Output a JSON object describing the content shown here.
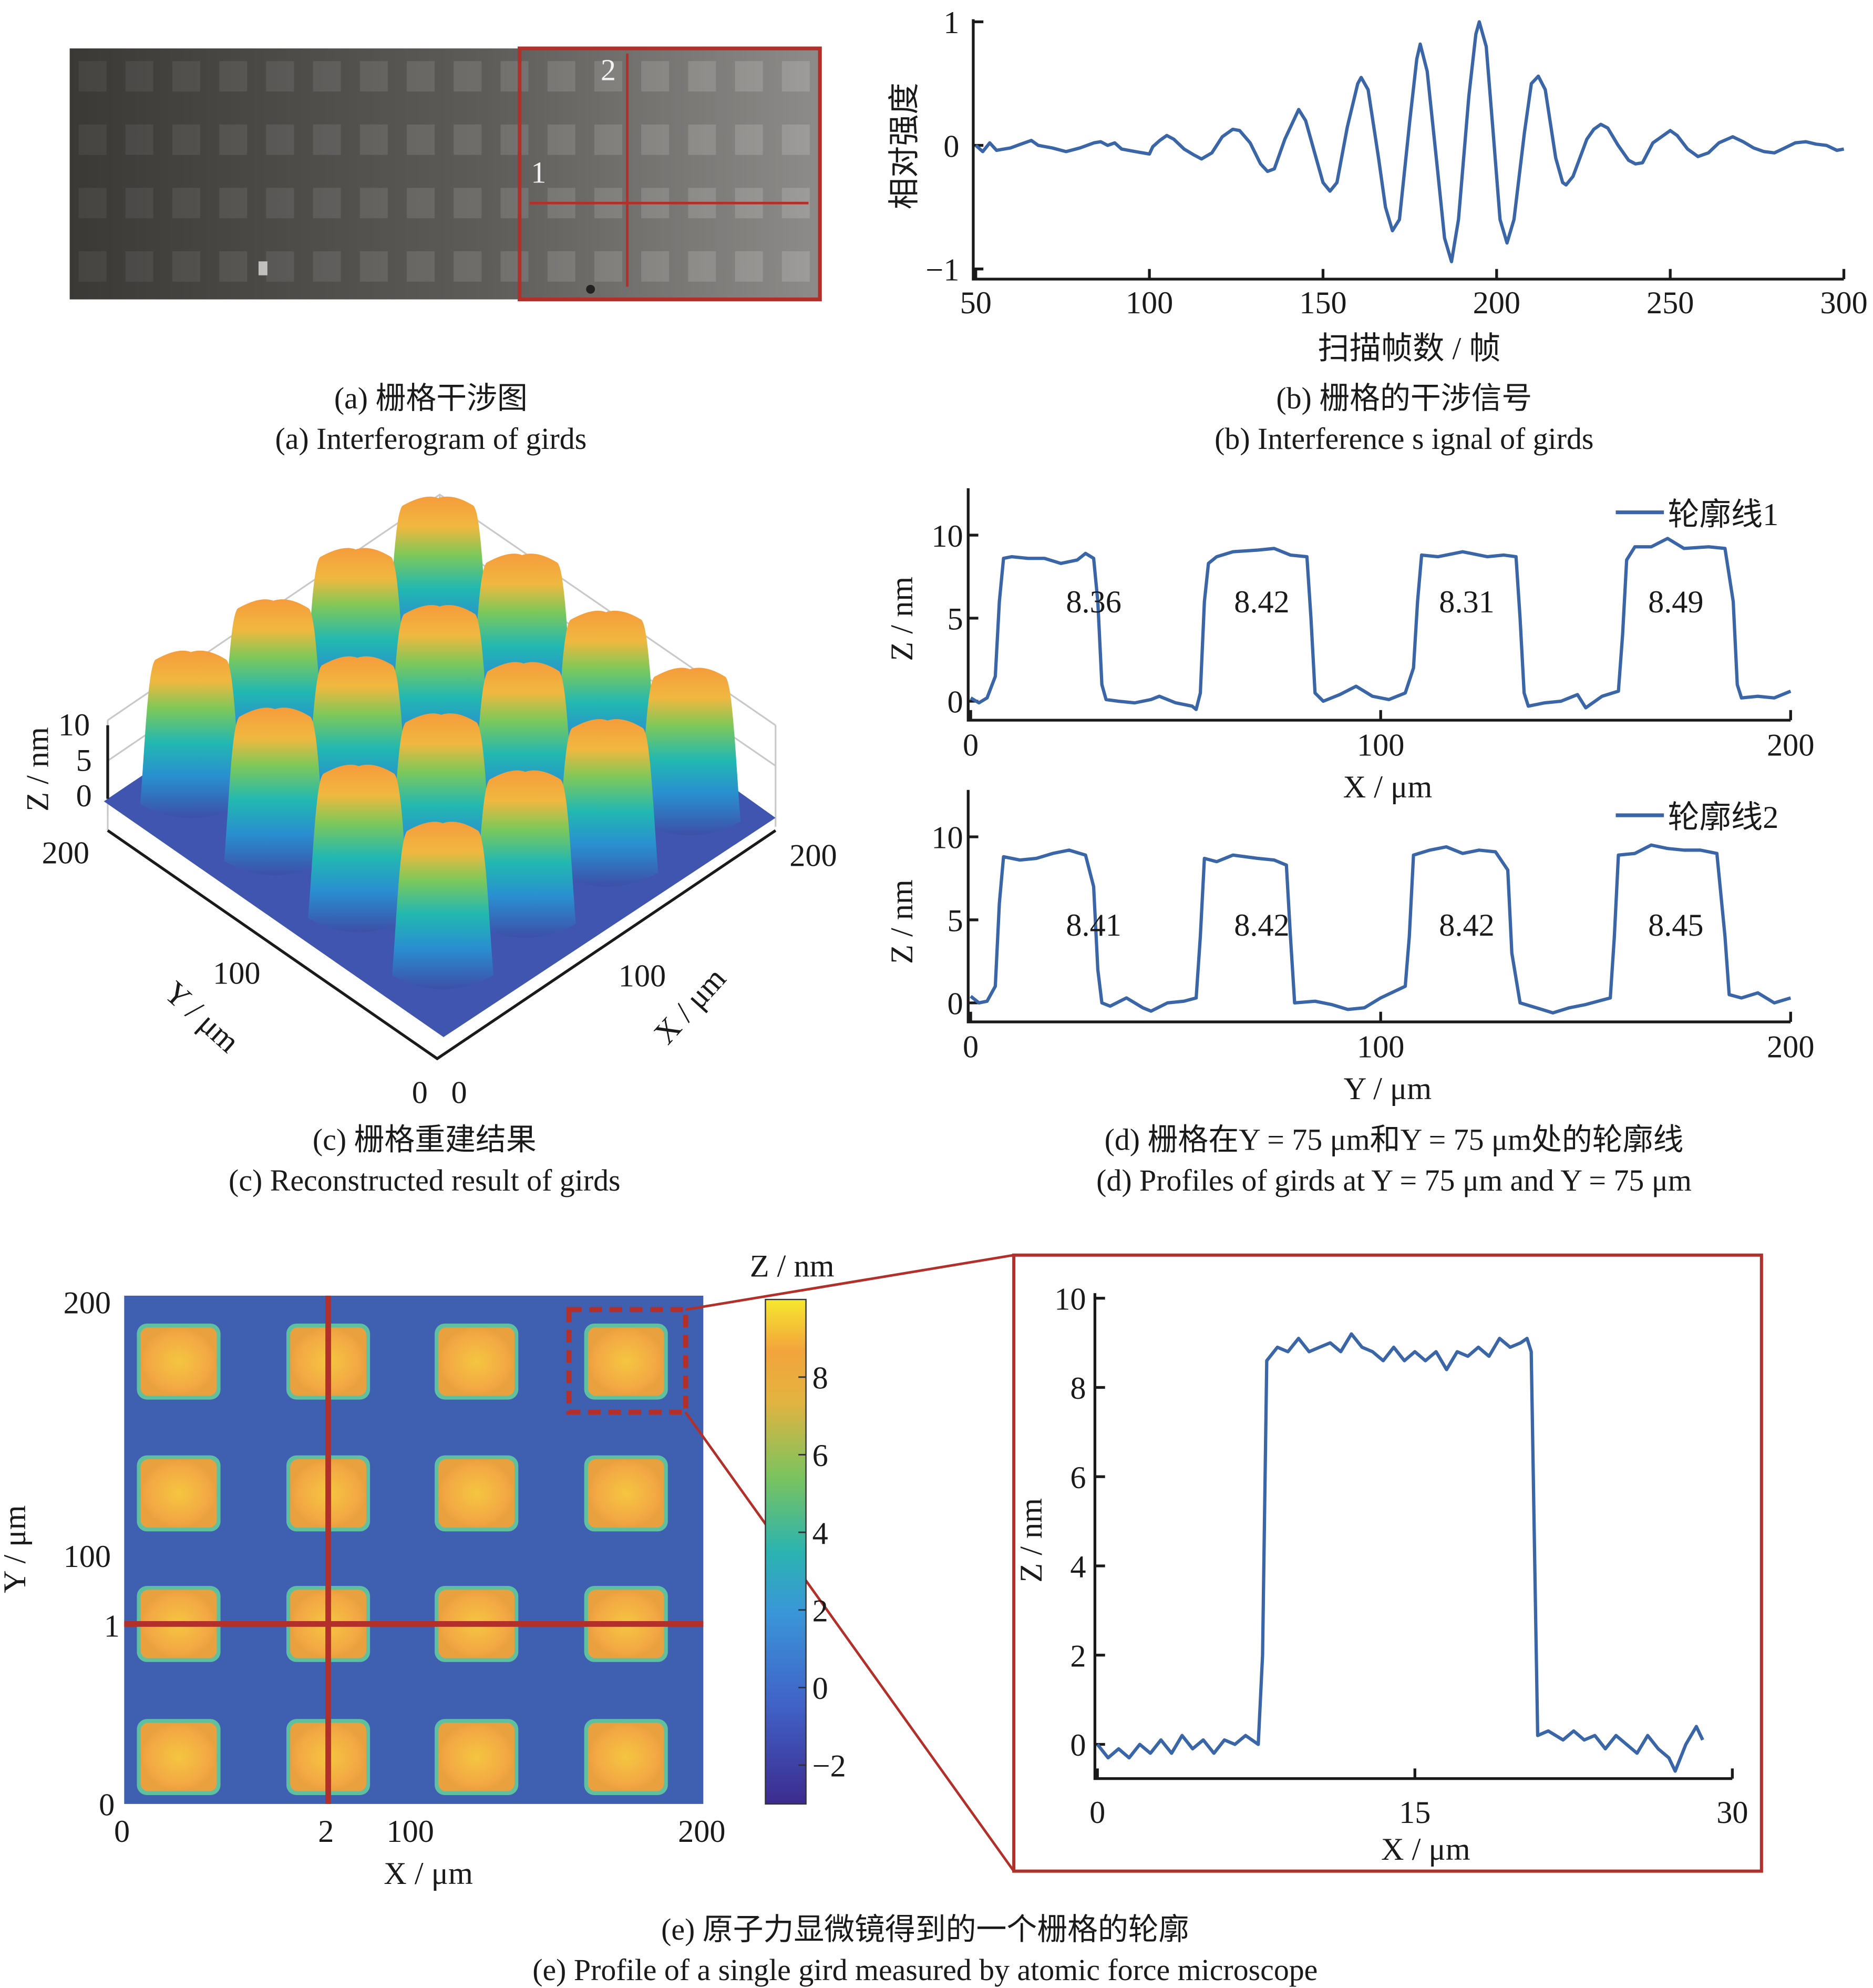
{
  "panel_a": {
    "caption_cn": "(a) 栅格干涉图",
    "caption_en": "(a) Interferogram of girds",
    "marker_1": "1",
    "marker_2": "2"
  },
  "panel_b": {
    "caption_cn": "(b) 栅格的干涉信号",
    "caption_en": "(b) Interference s ignal of girds"
  },
  "panel_c": {
    "caption_cn": "(c) 栅格重建结果",
    "caption_en": "(c)  Reconstructed result of girds",
    "z_label": "Z / nm",
    "z_ticks": [
      "10",
      "5",
      "0"
    ],
    "y_label": "Y / μm",
    "y_ticks": [
      "200",
      "100",
      "0"
    ],
    "x_label": "X / μm",
    "x_ticks": [
      "0",
      "100",
      "200"
    ],
    "colormap": [
      "#3e4fa8",
      "#2a8fd0",
      "#22b8b0",
      "#7cc85a",
      "#f0b840",
      "#f59c3c"
    ]
  },
  "panel_d": {
    "caption_cn": "(d) 栅格在Y = 75 μm和Y = 75 μm处的轮廓线",
    "caption_en": "(d) Profiles of girds at Y = 75 μm and Y = 75 μm"
  },
  "panel_e": {
    "caption_cn": "(e) 原子力显微镜得到的一个栅格的轮廓",
    "caption_en": "(e) Profile of a single gird measured by atomic force microscope",
    "map_x_label": "X / μm",
    "map_y_label": "Y / μm",
    "map_x_ticks": [
      "0",
      "2",
      "100",
      "200"
    ],
    "map_y_ticks": [
      "200",
      "100",
      "1",
      "0"
    ],
    "colorbar_title": "Z / nm",
    "colorbar_ticks": [
      "8",
      "6",
      "4",
      "2",
      "0",
      "−2"
    ],
    "colorbar_range": [
      -3,
      10
    ],
    "line_color": "#b3302a"
  },
  "chart_data": [
    {
      "id": "b",
      "type": "line",
      "xlabel": "扫描帧数 / 帧",
      "ylabel": "相对强度",
      "xlim": [
        50,
        300
      ],
      "ylim": [
        -1,
        1
      ],
      "xticks": [
        "50",
        "100",
        "150",
        "200",
        "250",
        "300"
      ],
      "yticks": [
        "1",
        "0",
        "−1"
      ],
      "color": "#3a66a8",
      "points": [
        [
          50,
          0
        ],
        [
          52,
          -0.05
        ],
        [
          54,
          0.02
        ],
        [
          56,
          -0.04
        ],
        [
          60,
          -0.02
        ],
        [
          63,
          0.01
        ],
        [
          66,
          0.04
        ],
        [
          68,
          0
        ],
        [
          72,
          -0.02
        ],
        [
          76,
          -0.05
        ],
        [
          80,
          -0.02
        ],
        [
          84,
          0.02
        ],
        [
          86,
          0.03
        ],
        [
          88,
          0
        ],
        [
          90,
          0.02
        ],
        [
          92,
          -0.03
        ],
        [
          96,
          -0.05
        ],
        [
          100,
          -0.07
        ],
        [
          101,
          -0.01
        ],
        [
          103,
          0.04
        ],
        [
          105,
          0.08
        ],
        [
          107,
          0.05
        ],
        [
          110,
          -0.03
        ],
        [
          113,
          -0.08
        ],
        [
          115,
          -0.11
        ],
        [
          118,
          -0.06
        ],
        [
          121,
          0.07
        ],
        [
          124,
          0.13
        ],
        [
          126,
          0.12
        ],
        [
          129,
          0.02
        ],
        [
          132,
          -0.15
        ],
        [
          134,
          -0.21
        ],
        [
          136,
          -0.19
        ],
        [
          139,
          0.05
        ],
        [
          143,
          0.29
        ],
        [
          145,
          0.2
        ],
        [
          148,
          -0.1
        ],
        [
          150,
          -0.3
        ],
        [
          152,
          -0.37
        ],
        [
          154,
          -0.3
        ],
        [
          157,
          0.15
        ],
        [
          160,
          0.5
        ],
        [
          161,
          0.55
        ],
        [
          163,
          0.45
        ],
        [
          166,
          -0.1
        ],
        [
          168,
          -0.5
        ],
        [
          170,
          -0.69
        ],
        [
          172,
          -0.6
        ],
        [
          175,
          0.2
        ],
        [
          177,
          0.7
        ],
        [
          178,
          0.82
        ],
        [
          180,
          0.6
        ],
        [
          183,
          -0.2
        ],
        [
          185,
          -0.75
        ],
        [
          187,
          -0.94
        ],
        [
          189,
          -0.6
        ],
        [
          192,
          0.4
        ],
        [
          194,
          0.9
        ],
        [
          195,
          1.0
        ],
        [
          197,
          0.8
        ],
        [
          199,
          0.1
        ],
        [
          201,
          -0.6
        ],
        [
          203,
          -0.79
        ],
        [
          205,
          -0.6
        ],
        [
          208,
          0.1
        ],
        [
          210,
          0.5
        ],
        [
          212,
          0.56
        ],
        [
          214,
          0.45
        ],
        [
          217,
          -0.1
        ],
        [
          219,
          -0.3
        ],
        [
          220,
          -0.32
        ],
        [
          222,
          -0.25
        ],
        [
          226,
          0.05
        ],
        [
          228,
          0.13
        ],
        [
          230,
          0.17
        ],
        [
          232,
          0.14
        ],
        [
          235,
          0.0
        ],
        [
          238,
          -0.12
        ],
        [
          240,
          -0.15
        ],
        [
          242,
          -0.14
        ],
        [
          245,
          0.02
        ],
        [
          248,
          0.08
        ],
        [
          250,
          0.12
        ],
        [
          252,
          0.08
        ],
        [
          255,
          -0.03
        ],
        [
          258,
          -0.09
        ],
        [
          261,
          -0.06
        ],
        [
          264,
          0.02
        ],
        [
          268,
          0.07
        ],
        [
          271,
          0.03
        ],
        [
          274,
          -0.02
        ],
        [
          277,
          -0.05
        ],
        [
          280,
          -0.06
        ],
        [
          283,
          -0.02
        ],
        [
          286,
          0.02
        ],
        [
          289,
          0.03
        ],
        [
          292,
          0.01
        ],
        [
          295,
          0.0
        ],
        [
          298,
          -0.04
        ],
        [
          300,
          -0.03
        ]
      ]
    },
    {
      "id": "d1",
      "type": "line",
      "xlabel": "X / μm",
      "ylabel": "Z / nm",
      "xlim": [
        0,
        200
      ],
      "ylim": [
        0,
        10
      ],
      "xticks": [
        "0",
        "100",
        "200"
      ],
      "yticks": [
        "10",
        "5",
        "0"
      ],
      "legend": "轮廓线1",
      "legend_position": "top-right",
      "color": "#3a66a8",
      "annotations": [
        "8.36",
        "8.42",
        "8.31",
        "8.49"
      ],
      "points": [
        [
          0,
          0.2
        ],
        [
          2,
          -0.1
        ],
        [
          4,
          0.2
        ],
        [
          6,
          1.5
        ],
        [
          7,
          6
        ],
        [
          8,
          8.6
        ],
        [
          10,
          8.7
        ],
        [
          14,
          8.6
        ],
        [
          18,
          8.6
        ],
        [
          22,
          8.3
        ],
        [
          26,
          8.5
        ],
        [
          28,
          8.9
        ],
        [
          30,
          8.6
        ],
        [
          31,
          6
        ],
        [
          32,
          1
        ],
        [
          33,
          0.1
        ],
        [
          36,
          0
        ],
        [
          40,
          -0.1
        ],
        [
          44,
          0.1
        ],
        [
          46,
          0.3
        ],
        [
          50,
          -0.1
        ],
        [
          54,
          -0.3
        ],
        [
          55,
          -0.5
        ],
        [
          56,
          0.5
        ],
        [
          57,
          6
        ],
        [
          58,
          8.3
        ],
        [
          60,
          8.7
        ],
        [
          64,
          9.0
        ],
        [
          70,
          9.1
        ],
        [
          74,
          9.2
        ],
        [
          78,
          8.8
        ],
        [
          82,
          8.7
        ],
        [
          83,
          5
        ],
        [
          84,
          0.5
        ],
        [
          86,
          0
        ],
        [
          90,
          0.4
        ],
        [
          94,
          0.9
        ],
        [
          98,
          0.3
        ],
        [
          102,
          0.1
        ],
        [
          106,
          0.5
        ],
        [
          108,
          2
        ],
        [
          109,
          6
        ],
        [
          110,
          8.8
        ],
        [
          114,
          8.7
        ],
        [
          120,
          9.0
        ],
        [
          126,
          8.7
        ],
        [
          130,
          8.8
        ],
        [
          133,
          8.7
        ],
        [
          134,
          5
        ],
        [
          135,
          0.5
        ],
        [
          136,
          -0.3
        ],
        [
          140,
          -0.1
        ],
        [
          144,
          0
        ],
        [
          148,
          0.4
        ],
        [
          150,
          -0.4
        ],
        [
          154,
          0.3
        ],
        [
          158,
          0.6
        ],
        [
          159,
          4
        ],
        [
          160,
          8.5
        ],
        [
          162,
          9.3
        ],
        [
          166,
          9.3
        ],
        [
          170,
          9.8
        ],
        [
          174,
          9.2
        ],
        [
          180,
          9.3
        ],
        [
          184,
          9.2
        ],
        [
          186,
          6
        ],
        [
          187,
          1
        ],
        [
          188,
          0.2
        ],
        [
          192,
          0.3
        ],
        [
          196,
          0.2
        ],
        [
          200,
          0.6
        ]
      ]
    },
    {
      "id": "d2",
      "type": "line",
      "xlabel": "Y / μm",
      "ylabel": "Z / nm",
      "xlim": [
        0,
        200
      ],
      "ylim": [
        0,
        10
      ],
      "xticks": [
        "0",
        "100",
        "200"
      ],
      "yticks": [
        "10",
        "5",
        "0"
      ],
      "legend": "轮廓线2",
      "legend_position": "top-right",
      "color": "#3a66a8",
      "annotations": [
        "8.41",
        "8.42",
        "8.42",
        "8.45"
      ],
      "points": [
        [
          0,
          0.4
        ],
        [
          2,
          0
        ],
        [
          4,
          0.1
        ],
        [
          6,
          1
        ],
        [
          7,
          6
        ],
        [
          8,
          8.8
        ],
        [
          12,
          8.6
        ],
        [
          16,
          8.7
        ],
        [
          20,
          9.0
        ],
        [
          24,
          9.2
        ],
        [
          28,
          8.9
        ],
        [
          30,
          7
        ],
        [
          31,
          2
        ],
        [
          32,
          0
        ],
        [
          34,
          -0.2
        ],
        [
          38,
          0.3
        ],
        [
          42,
          -0.3
        ],
        [
          44,
          -0.5
        ],
        [
          48,
          0
        ],
        [
          52,
          0.1
        ],
        [
          55,
          0.3
        ],
        [
          56,
          4
        ],
        [
          57,
          8.7
        ],
        [
          60,
          8.5
        ],
        [
          64,
          8.9
        ],
        [
          70,
          8.7
        ],
        [
          74,
          8.6
        ],
        [
          77,
          8.3
        ],
        [
          78,
          4
        ],
        [
          79,
          0
        ],
        [
          84,
          0.1
        ],
        [
          88,
          -0.1
        ],
        [
          92,
          -0.4
        ],
        [
          96,
          -0.3
        ],
        [
          100,
          0.3
        ],
        [
          106,
          1
        ],
        [
          107,
          4
        ],
        [
          108,
          8.9
        ],
        [
          112,
          9.2
        ],
        [
          116,
          9.4
        ],
        [
          120,
          9.0
        ],
        [
          124,
          9.2
        ],
        [
          128,
          9.1
        ],
        [
          131,
          8
        ],
        [
          132,
          3
        ],
        [
          134,
          0
        ],
        [
          138,
          -0.3
        ],
        [
          142,
          -0.6
        ],
        [
          146,
          -0.3
        ],
        [
          150,
          -0.1
        ],
        [
          156,
          0.3
        ],
        [
          157,
          4
        ],
        [
          158,
          8.9
        ],
        [
          162,
          9.0
        ],
        [
          166,
          9.5
        ],
        [
          170,
          9.3
        ],
        [
          174,
          9.2
        ],
        [
          178,
          9.2
        ],
        [
          182,
          9.0
        ],
        [
          184,
          4
        ],
        [
          185,
          0.5
        ],
        [
          188,
          0.3
        ],
        [
          192,
          0.6
        ],
        [
          196,
          0
        ],
        [
          200,
          0.3
        ]
      ]
    },
    {
      "id": "e",
      "type": "line",
      "xlabel": "X / μm",
      "ylabel": "Z / nm",
      "xlim": [
        0,
        30
      ],
      "ylim": [
        0,
        10
      ],
      "xticks": [
        "0",
        "15",
        "30"
      ],
      "yticks": [
        "10",
        "8",
        "6",
        "4",
        "2",
        "0"
      ],
      "color": "#3a66a8",
      "points": [
        [
          0,
          0
        ],
        [
          0.5,
          -0.3
        ],
        [
          1,
          -0.1
        ],
        [
          1.5,
          -0.3
        ],
        [
          2,
          0
        ],
        [
          2.5,
          -0.2
        ],
        [
          3,
          0.1
        ],
        [
          3.5,
          -0.2
        ],
        [
          4,
          0.2
        ],
        [
          4.5,
          -0.1
        ],
        [
          5,
          0.1
        ],
        [
          5.5,
          -0.2
        ],
        [
          6,
          0.1
        ],
        [
          6.5,
          0
        ],
        [
          7,
          0.2
        ],
        [
          7.6,
          0
        ],
        [
          7.8,
          2
        ],
        [
          8.0,
          8.6
        ],
        [
          8.5,
          8.9
        ],
        [
          9,
          8.8
        ],
        [
          9.5,
          9.1
        ],
        [
          10,
          8.8
        ],
        [
          10.5,
          8.9
        ],
        [
          11,
          9.0
        ],
        [
          11.5,
          8.8
        ],
        [
          12,
          9.2
        ],
        [
          12.5,
          8.9
        ],
        [
          13,
          8.8
        ],
        [
          13.5,
          8.6
        ],
        [
          14,
          8.9
        ],
        [
          14.5,
          8.6
        ],
        [
          15,
          8.8
        ],
        [
          15.5,
          8.6
        ],
        [
          16,
          8.8
        ],
        [
          16.5,
          8.4
        ],
        [
          17,
          8.8
        ],
        [
          17.5,
          8.7
        ],
        [
          18,
          8.9
        ],
        [
          18.5,
          8.7
        ],
        [
          19,
          9.1
        ],
        [
          19.5,
          8.9
        ],
        [
          20,
          9.0
        ],
        [
          20.3,
          9.1
        ],
        [
          20.5,
          8.8
        ],
        [
          20.7,
          3
        ],
        [
          20.8,
          0.2
        ],
        [
          21.3,
          0.3
        ],
        [
          22,
          0.1
        ],
        [
          22.5,
          0.3
        ],
        [
          23,
          0.1
        ],
        [
          23.5,
          0.2
        ],
        [
          24,
          -0.1
        ],
        [
          24.5,
          0.2
        ],
        [
          25,
          0
        ],
        [
          25.5,
          -0.2
        ],
        [
          26,
          0.2
        ],
        [
          26.5,
          -0.1
        ],
        [
          27,
          -0.3
        ],
        [
          27.3,
          -0.6
        ],
        [
          27.8,
          0
        ],
        [
          28.3,
          0.4
        ],
        [
          28.6,
          0.1
        ]
      ]
    }
  ]
}
